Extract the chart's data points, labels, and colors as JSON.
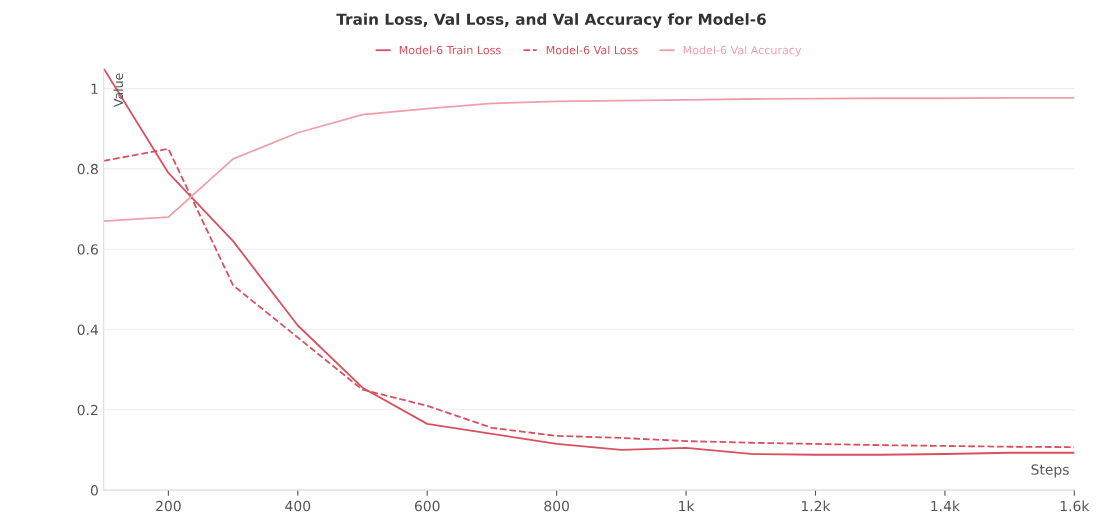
{
  "chart_data": {
    "type": "line",
    "title": "Train Loss, Val Loss, and Val Accuracy for Model-6",
    "xlabel": "Steps",
    "ylabel": "Value",
    "x": [
      100,
      200,
      300,
      400,
      500,
      600,
      700,
      800,
      900,
      1000,
      1100,
      1200,
      1300,
      1400,
      1500,
      1600
    ],
    "series": [
      {
        "name": "Model-6 Train Loss",
        "color": "#d9505e",
        "line_style": "solid",
        "values": [
          1.05,
          0.79,
          0.62,
          0.41,
          0.255,
          0.165,
          0.14,
          0.115,
          0.1,
          0.105,
          0.09,
          0.088,
          0.088,
          0.09,
          0.093,
          0.093
        ]
      },
      {
        "name": "Model-6 Val Loss",
        "color": "#d9505e",
        "line_style": "dashed",
        "values": [
          0.82,
          0.85,
          0.51,
          0.38,
          0.25,
          0.21,
          0.155,
          0.135,
          0.13,
          0.122,
          0.118,
          0.115,
          0.112,
          0.11,
          0.108,
          0.107
        ]
      },
      {
        "name": "Model-6 Val Accuracy",
        "color": "#eda0aa",
        "line_style": "solid",
        "values": [
          0.67,
          0.68,
          0.825,
          0.89,
          0.935,
          0.95,
          0.963,
          0.968,
          0.97,
          0.972,
          0.974,
          0.975,
          0.976,
          0.976,
          0.977,
          0.977
        ]
      }
    ],
    "xlim": [
      100,
      1600
    ],
    "xticks": [
      200,
      400,
      600,
      800,
      {
        "value": 1000,
        "label": "1k"
      },
      {
        "value": 1200,
        "label": "1.2k"
      },
      {
        "value": 1400,
        "label": "1.4k"
      },
      {
        "value": 1600,
        "label": "1.6k"
      }
    ],
    "ylim": [
      0,
      1.05
    ],
    "yticks": [
      0,
      0.2,
      0.4,
      0.6,
      0.8,
      1
    ],
    "grid": "y",
    "legend": "top",
    "marker": "none"
  }
}
